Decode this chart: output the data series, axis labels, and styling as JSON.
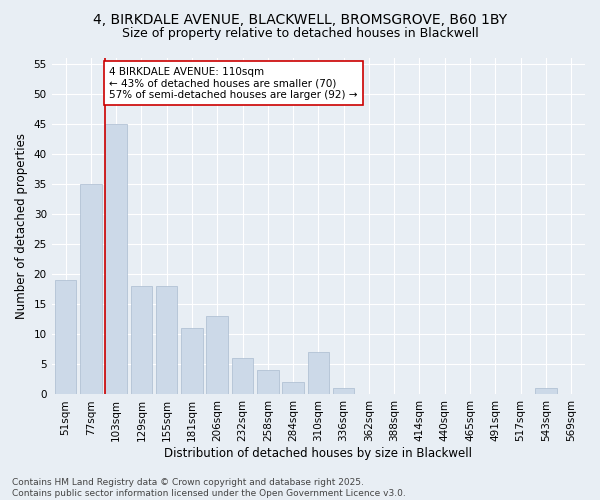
{
  "title_line1": "4, BIRKDALE AVENUE, BLACKWELL, BROMSGROVE, B60 1BY",
  "title_line2": "Size of property relative to detached houses in Blackwell",
  "xlabel": "Distribution of detached houses by size in Blackwell",
  "ylabel": "Number of detached properties",
  "categories": [
    "51sqm",
    "77sqm",
    "103sqm",
    "129sqm",
    "155sqm",
    "181sqm",
    "206sqm",
    "232sqm",
    "258sqm",
    "284sqm",
    "310sqm",
    "336sqm",
    "362sqm",
    "388sqm",
    "414sqm",
    "440sqm",
    "465sqm",
    "491sqm",
    "517sqm",
    "543sqm",
    "569sqm"
  ],
  "values": [
    19,
    35,
    45,
    18,
    18,
    11,
    13,
    6,
    4,
    2,
    7,
    1,
    0,
    0,
    0,
    0,
    0,
    0,
    0,
    1,
    0
  ],
  "bar_color": "#ccd9e8",
  "bar_edge_color": "#aabbd0",
  "highlight_bar_index": 2,
  "highlight_line_color": "#cc0000",
  "annotation_line1": "4 BIRKDALE AVENUE: 110sqm",
  "annotation_line2": "← 43% of detached houses are smaller (70)",
  "annotation_line3": "57% of semi-detached houses are larger (92) →",
  "annotation_box_facecolor": "#ffffff",
  "annotation_box_edgecolor": "#cc0000",
  "ylim": [
    0,
    56
  ],
  "yticks": [
    0,
    5,
    10,
    15,
    20,
    25,
    30,
    35,
    40,
    45,
    50,
    55
  ],
  "background_color": "#e8eef4",
  "grid_color": "#ffffff",
  "footer_line1": "Contains HM Land Registry data © Crown copyright and database right 2025.",
  "footer_line2": "Contains public sector information licensed under the Open Government Licence v3.0.",
  "title1_fontsize": 10,
  "title2_fontsize": 9,
  "axis_label_fontsize": 8.5,
  "tick_fontsize": 7.5,
  "annotation_fontsize": 7.5,
  "footer_fontsize": 6.5
}
